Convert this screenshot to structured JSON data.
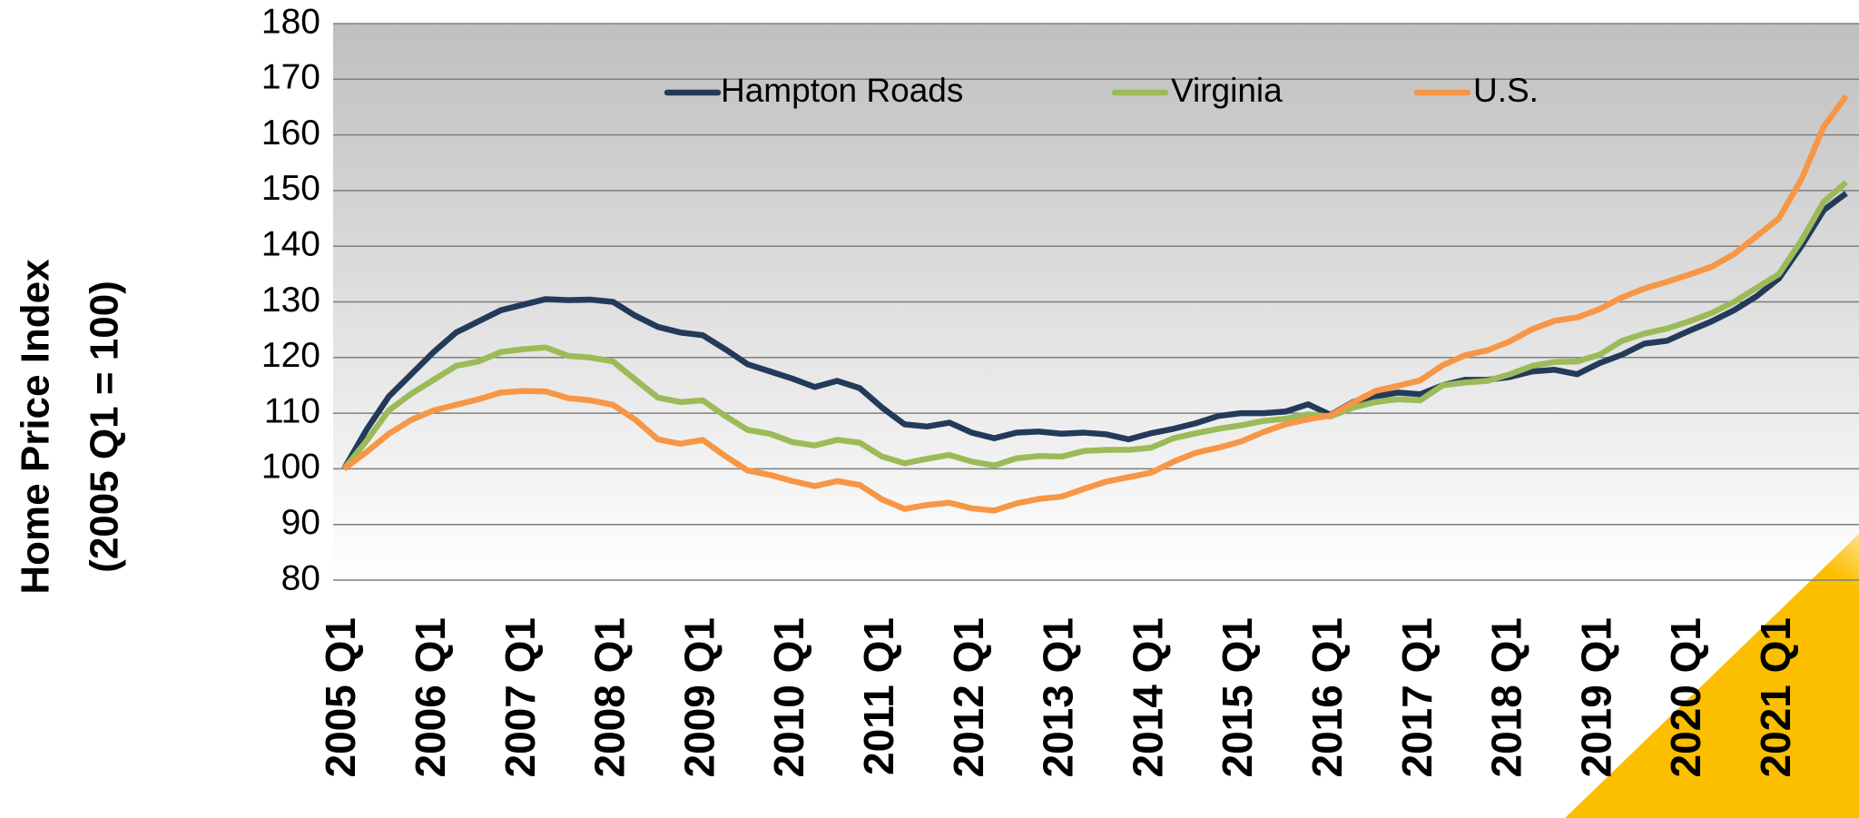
{
  "chart_data": {
    "type": "line",
    "y_label": [
      "Home Price Index",
      "(2005 Q1 = 100)"
    ],
    "categories": [
      "2005 Q1",
      null,
      null,
      null,
      "2006 Q1",
      null,
      null,
      null,
      "2007 Q1",
      null,
      null,
      null,
      "2008 Q1",
      null,
      null,
      null,
      "2009 Q1",
      null,
      null,
      null,
      "2010 Q1",
      null,
      null,
      null,
      "2011 Q1",
      null,
      null,
      null,
      "2012 Q1",
      null,
      null,
      null,
      "2013 Q1",
      null,
      null,
      null,
      "2014 Q1",
      null,
      null,
      null,
      "2015 Q1",
      null,
      null,
      null,
      "2016 Q1",
      null,
      null,
      null,
      "2017 Q1",
      null,
      null,
      null,
      "2018 Q1",
      null,
      null,
      null,
      "2019 Q1",
      null,
      null,
      null,
      "2020 Q1",
      null,
      null,
      null,
      "2021 Q1",
      null,
      null,
      null
    ],
    "series": [
      {
        "name": "Hampton Roads",
        "color": "#243a5a",
        "values": [
          100,
          107,
          113,
          117,
          121,
          124.5,
          126.5,
          128.5,
          129.5,
          130.5,
          130.3,
          130.4,
          130,
          127.5,
          125.5,
          124.5,
          124,
          121.5,
          118.8,
          117.5,
          116.2,
          114.7,
          115.8,
          114.5,
          111,
          108,
          107.6,
          108.3,
          106.5,
          105.5,
          106.5,
          106.7,
          106.3,
          106.5,
          106.2,
          105.3,
          106.4,
          107.2,
          108.2,
          109.5,
          110,
          110,
          110.3,
          111.6,
          109.7,
          112,
          113,
          113.7,
          113.4,
          115,
          116,
          116,
          116.5,
          117.5,
          117.8,
          117,
          119,
          120.5,
          122.5,
          123,
          124.8,
          126.5,
          128.5,
          131,
          134.2,
          140,
          146.5,
          149.5
        ]
      },
      {
        "name": "Virginia",
        "color": "#9bbb59",
        "values": [
          100,
          105,
          110.5,
          113.5,
          116,
          118.5,
          119.3,
          121,
          121.5,
          121.8,
          120.3,
          120,
          119.3,
          116,
          112.8,
          112,
          112.3,
          109.5,
          107,
          106.3,
          104.8,
          104.2,
          105.2,
          104.7,
          102.2,
          101,
          101.8,
          102.5,
          101.3,
          100.6,
          101.9,
          102.3,
          102.2,
          103.2,
          103.4,
          103.4,
          103.8,
          105.5,
          106.4,
          107.2,
          107.8,
          108.6,
          109,
          109.8,
          109.4,
          111,
          112,
          112.5,
          112.3,
          115,
          115.5,
          115.8,
          117,
          118.5,
          119.2,
          119.3,
          120.5,
          123,
          124.3,
          125.2,
          126.5,
          128,
          130,
          132.5,
          135,
          141,
          148,
          151.5
        ]
      },
      {
        "name": "U.S.",
        "color": "#f79646",
        "values": [
          100,
          103,
          106.3,
          108.8,
          110.5,
          111.5,
          112.5,
          113.7,
          114,
          113.9,
          112.7,
          112.3,
          111.5,
          108.8,
          105.3,
          104.5,
          105.2,
          102.3,
          99.7,
          98.9,
          97.8,
          96.9,
          97.8,
          97.1,
          94.5,
          92.8,
          93.5,
          93.9,
          92.9,
          92.5,
          93.8,
          94.6,
          95,
          96.4,
          97.7,
          98.5,
          99.3,
          101.3,
          102.9,
          103.8,
          104.9,
          106.6,
          108,
          108.9,
          109.6,
          111.9,
          114,
          114.9,
          115.9,
          118.6,
          120.4,
          121.3,
          122.9,
          125.1,
          126.6,
          127.2,
          128.7,
          130.8,
          132.4,
          133.6,
          134.9,
          136.3,
          138.6,
          141.8,
          145,
          152,
          161.5,
          167
        ]
      }
    ],
    "ylim": [
      80,
      180
    ],
    "yticks": [
      80,
      90,
      100,
      110,
      120,
      130,
      140,
      150,
      160,
      170,
      180
    ],
    "grid": true,
    "legend": "upper center"
  }
}
